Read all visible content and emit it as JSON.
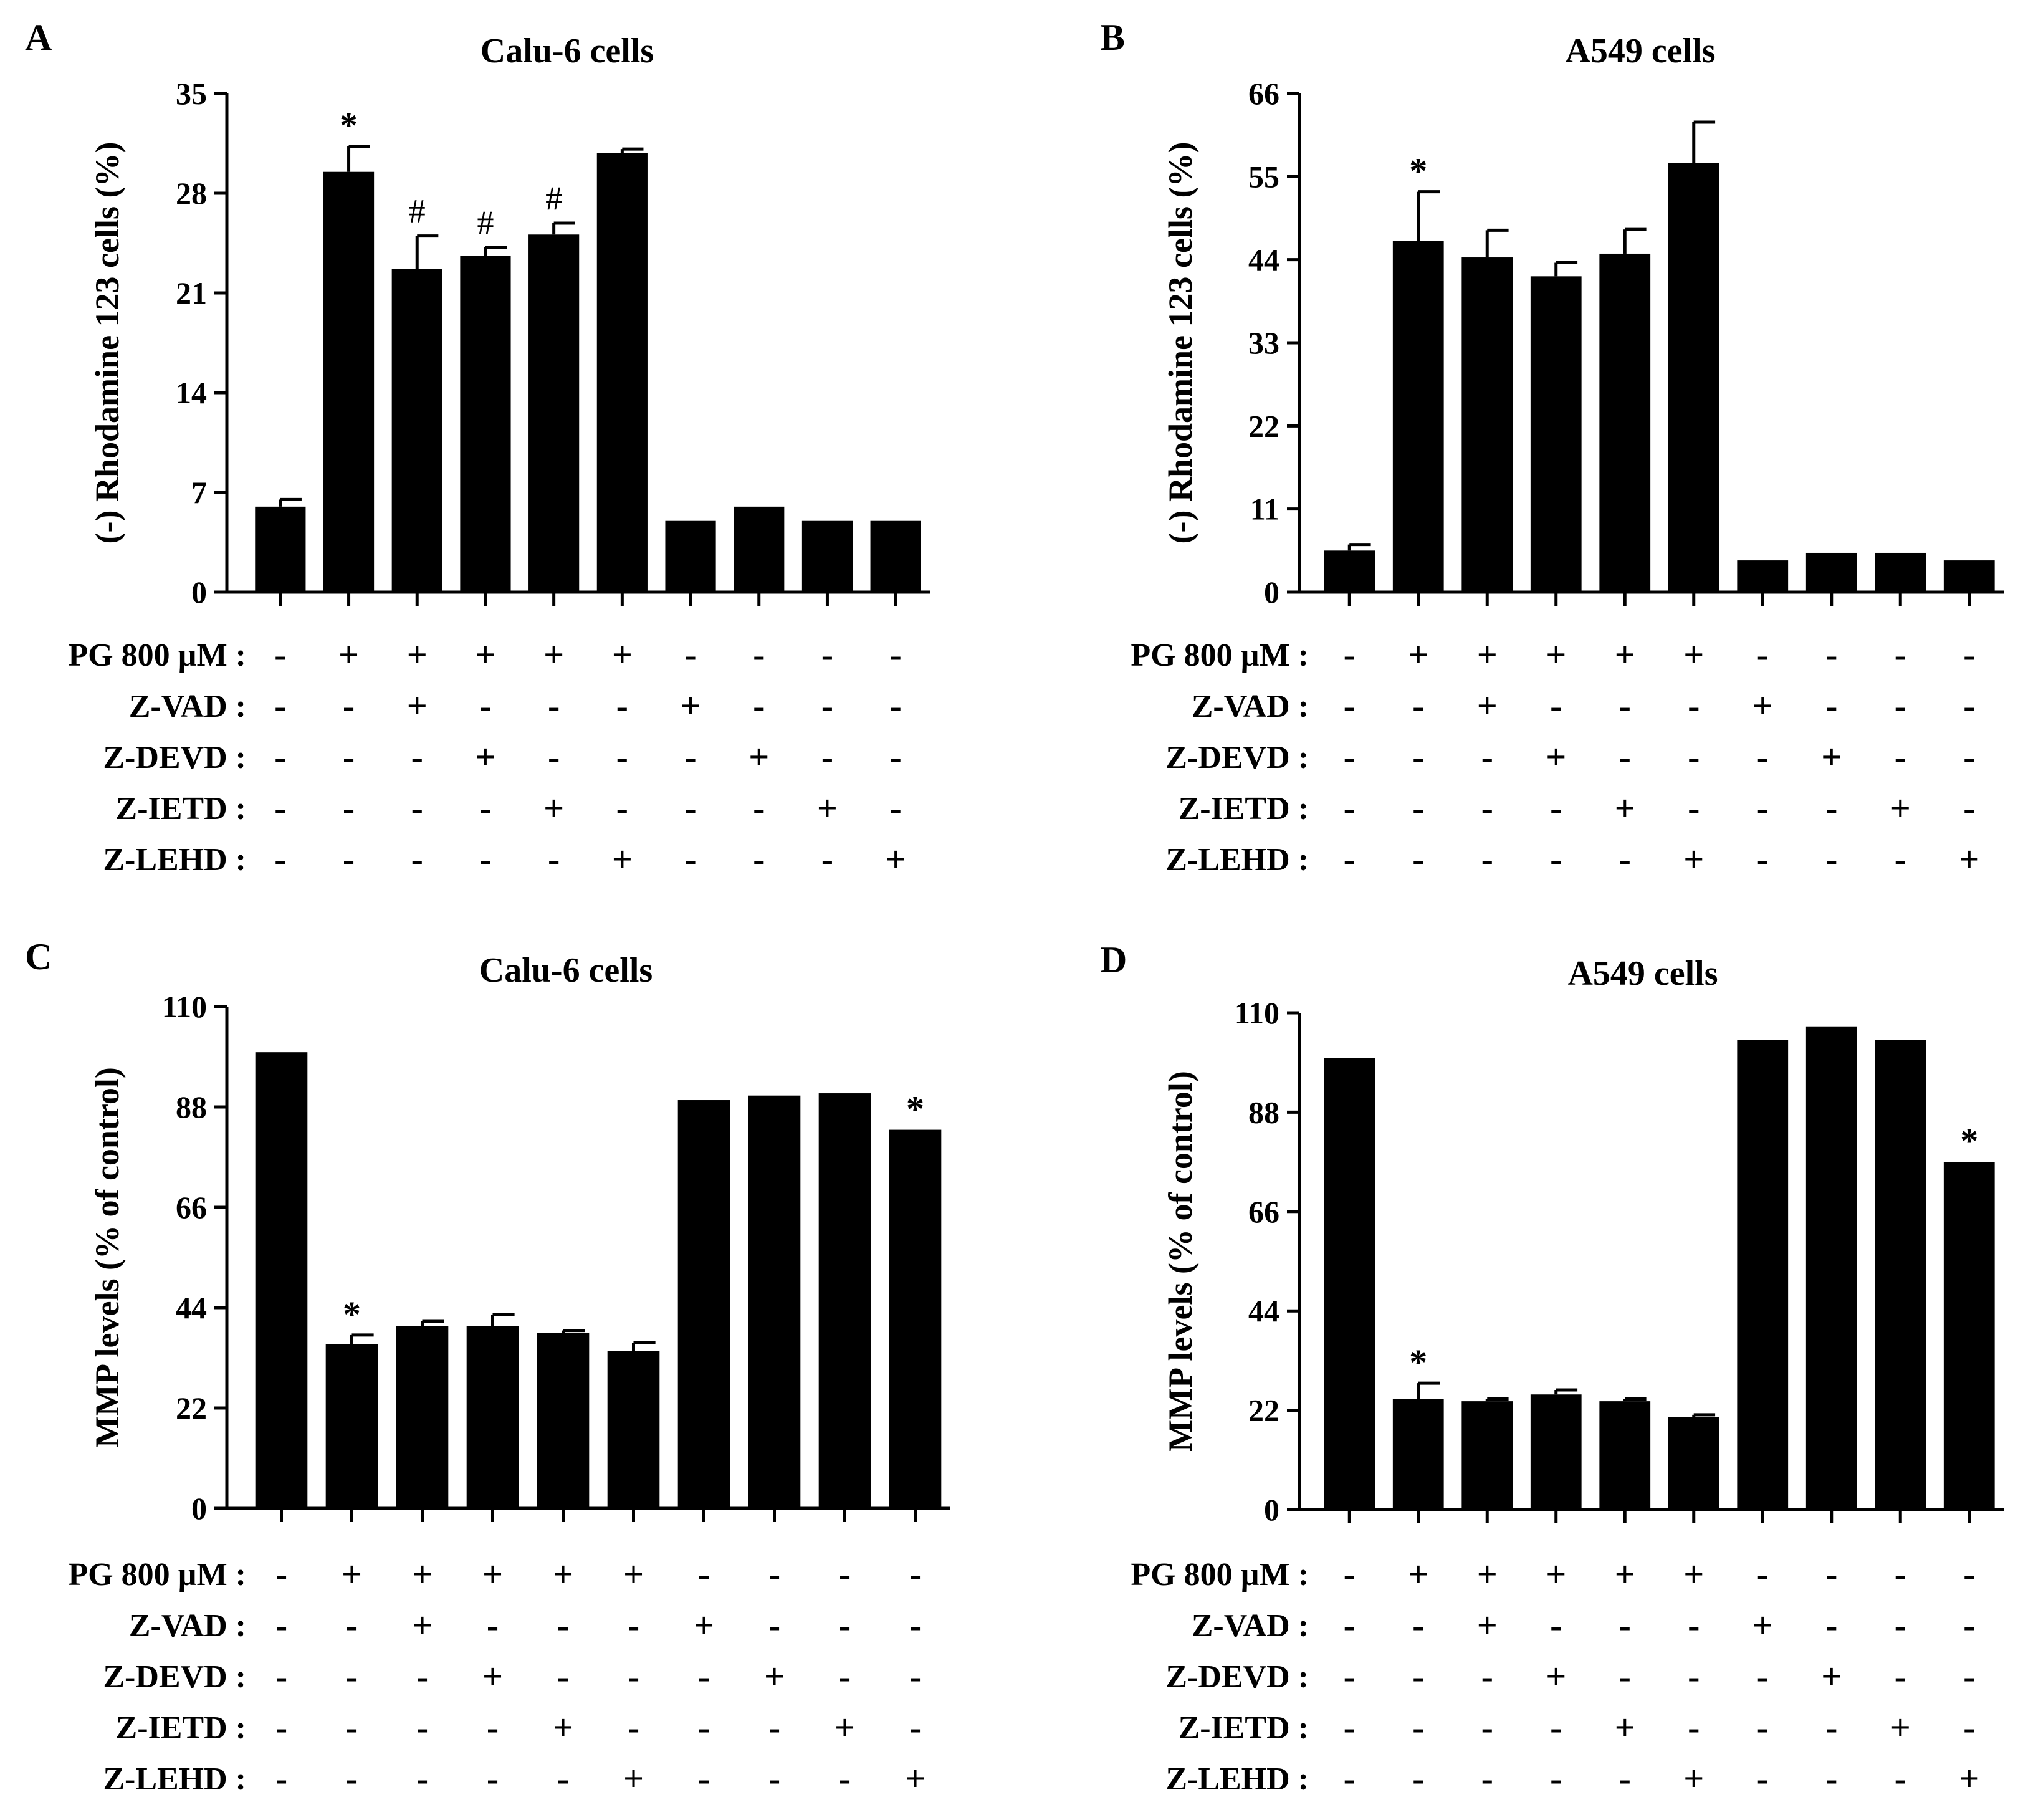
{
  "chart_data": [
    {
      "panel": "A",
      "type": "bar",
      "title": "Calu-6 cells",
      "ylabel": "(-) Rhodamine 123 cells (%)",
      "ylim": [
        0,
        35
      ],
      "yticks": [
        0,
        7,
        14,
        21,
        28,
        35
      ],
      "values": [
        6.0,
        29.5,
        22.7,
        23.6,
        25.1,
        30.8,
        5.0,
        6.0,
        5.0,
        5.0
      ],
      "errors": [
        0.5,
        1.8,
        2.3,
        0.6,
        0.8,
        0.3,
        0,
        0,
        0,
        0
      ],
      "annotations": [
        "",
        "*",
        "#",
        "#",
        "#",
        "",
        "",
        "",
        "",
        ""
      ],
      "conditions": [
        {
          "label": "PG 800 µM :",
          "signs": [
            "-",
            "+",
            "+",
            "+",
            "+",
            "+",
            "-",
            "-",
            "-",
            "-"
          ]
        },
        {
          "label": "Z-VAD :",
          "signs": [
            "-",
            "-",
            "+",
            "-",
            "-",
            "-",
            "+",
            "-",
            "-",
            "-"
          ]
        },
        {
          "label": "Z-DEVD :",
          "signs": [
            "-",
            "-",
            "-",
            "+",
            "-",
            "-",
            "-",
            "+",
            "-",
            "-"
          ]
        },
        {
          "label": "Z-IETD :",
          "signs": [
            "-",
            "-",
            "-",
            "-",
            "+",
            "-",
            "-",
            "-",
            "+",
            "-"
          ]
        },
        {
          "label": "Z-LEHD :",
          "signs": [
            "-",
            "-",
            "-",
            "-",
            "-",
            "+",
            "-",
            "-",
            "-",
            "+"
          ]
        }
      ]
    },
    {
      "panel": "B",
      "type": "bar",
      "title": "A549 cells",
      "ylabel": "(-) Rhodamine 123 cells (%)",
      "ylim": [
        0,
        66
      ],
      "yticks": [
        0,
        11,
        22,
        33,
        44,
        55,
        66
      ],
      "values": [
        5.5,
        46.5,
        44.3,
        41.8,
        44.8,
        56.8,
        4.2,
        5.2,
        5.2,
        4.2
      ],
      "errors": [
        0.8,
        6.5,
        3.6,
        1.8,
        3.2,
        5.4,
        0,
        0,
        0,
        0
      ],
      "annotations": [
        "",
        "*",
        "",
        "",
        "",
        "",
        "",
        "",
        "",
        ""
      ],
      "conditions": [
        {
          "label": "PG 800 µM :",
          "signs": [
            "-",
            "+",
            "+",
            "+",
            "+",
            "+",
            "-",
            "-",
            "-",
            "-"
          ]
        },
        {
          "label": "Z-VAD :",
          "signs": [
            "-",
            "-",
            "+",
            "-",
            "-",
            "-",
            "+",
            "-",
            "-",
            "-"
          ]
        },
        {
          "label": "Z-DEVD :",
          "signs": [
            "-",
            "-",
            "-",
            "+",
            "-",
            "-",
            "-",
            "+",
            "-",
            "-"
          ]
        },
        {
          "label": "Z-IETD :",
          "signs": [
            "-",
            "-",
            "-",
            "-",
            "+",
            "-",
            "-",
            "-",
            "+",
            "-"
          ]
        },
        {
          "label": "Z-LEHD :",
          "signs": [
            "-",
            "-",
            "-",
            "-",
            "-",
            "+",
            "-",
            "-",
            "-",
            "+"
          ]
        }
      ]
    },
    {
      "panel": "C",
      "type": "bar",
      "title": "Calu-6 cells",
      "ylabel": "MMP levels (% of control)",
      "ylim": [
        0,
        110
      ],
      "yticks": [
        0,
        22,
        44,
        66,
        88,
        110
      ],
      "values": [
        100,
        36,
        40,
        40,
        38.5,
        34.5,
        89.5,
        90.5,
        91,
        83
      ],
      "errors": [
        0,
        2.0,
        1.0,
        2.5,
        0.5,
        1.8,
        0,
        0,
        0,
        0
      ],
      "annotations": [
        "",
        "*",
        "",
        "",
        "",
        "",
        "",
        "",
        "",
        "*"
      ],
      "conditions": [
        {
          "label": "PG 800 µM :",
          "signs": [
            "-",
            "+",
            "+",
            "+",
            "+",
            "+",
            "-",
            "-",
            "-",
            "-"
          ]
        },
        {
          "label": "Z-VAD :",
          "signs": [
            "-",
            "-",
            "+",
            "-",
            "-",
            "-",
            "+",
            "-",
            "-",
            "-"
          ]
        },
        {
          "label": "Z-DEVD :",
          "signs": [
            "-",
            "-",
            "-",
            "+",
            "-",
            "-",
            "-",
            "+",
            "-",
            "-"
          ]
        },
        {
          "label": "Z-IETD :",
          "signs": [
            "-",
            "-",
            "-",
            "-",
            "+",
            "-",
            "-",
            "-",
            "+",
            "-"
          ]
        },
        {
          "label": "Z-LEHD :",
          "signs": [
            "-",
            "-",
            "-",
            "-",
            "-",
            "+",
            "-",
            "-",
            "-",
            "+"
          ]
        }
      ]
    },
    {
      "panel": "D",
      "type": "bar",
      "title": "A549 cells",
      "ylabel": "MMP levels (% of control)",
      "ylim": [
        0,
        110
      ],
      "yticks": [
        0,
        22,
        44,
        66,
        88,
        110
      ],
      "values": [
        100,
        24.5,
        24,
        25.5,
        24,
        20.5,
        104,
        107,
        104,
        77
      ],
      "errors": [
        0,
        3.5,
        0.5,
        1.0,
        0.5,
        0.5,
        0,
        0,
        0,
        0
      ],
      "annotations": [
        "",
        "*",
        "",
        "",
        "",
        "",
        "",
        "",
        "",
        "*"
      ],
      "conditions": [
        {
          "label": "PG 800 µM :",
          "signs": [
            "-",
            "+",
            "+",
            "+",
            "+",
            "+",
            "-",
            "-",
            "-",
            "-"
          ]
        },
        {
          "label": "Z-VAD :",
          "signs": [
            "-",
            "-",
            "+",
            "-",
            "-",
            "-",
            "+",
            "-",
            "-",
            "-"
          ]
        },
        {
          "label": "Z-DEVD :",
          "signs": [
            "-",
            "-",
            "-",
            "+",
            "-",
            "-",
            "-",
            "+",
            "-",
            "-"
          ]
        },
        {
          "label": "Z-IETD :",
          "signs": [
            "-",
            "-",
            "-",
            "-",
            "+",
            "-",
            "-",
            "-",
            "+",
            "-"
          ]
        },
        {
          "label": "Z-LEHD :",
          "signs": [
            "-",
            "-",
            "-",
            "-",
            "-",
            "+",
            "-",
            "-",
            "-",
            "+"
          ]
        }
      ]
    }
  ],
  "colors": {
    "bar": "#000000",
    "axis": "#000000",
    "background": "#ffffff"
  }
}
